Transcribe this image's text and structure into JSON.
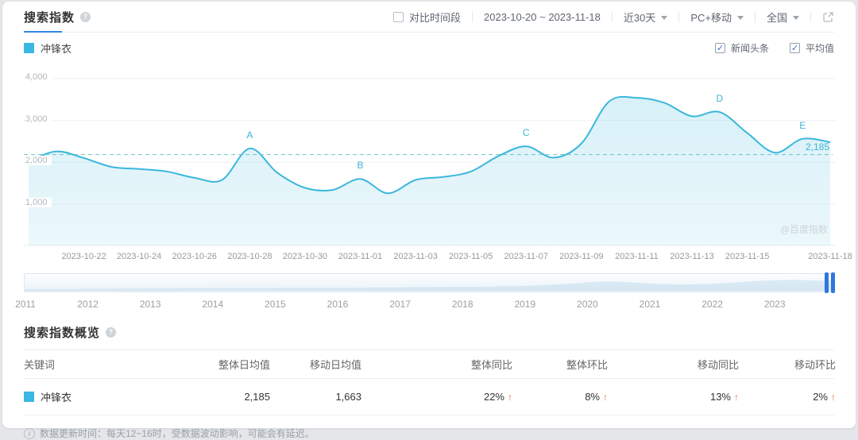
{
  "header": {
    "title": "搜索指数",
    "compare_label": "对比时间段",
    "date_range": "2023-10-20 ~ 2023-11-18",
    "period": "近30天",
    "device": "PC+移动",
    "region": "全国"
  },
  "legend": {
    "keyword": "冲锋衣",
    "news_label": "新闻头条",
    "avg_label": "平均值"
  },
  "chart_data": {
    "type": "area",
    "title": "搜索指数",
    "x": [
      "2023-10-20",
      "2023-10-21",
      "2023-10-22",
      "2023-10-23",
      "2023-10-24",
      "2023-10-25",
      "2023-10-26",
      "2023-10-27",
      "2023-10-28",
      "2023-10-29",
      "2023-10-30",
      "2023-10-31",
      "2023-11-01",
      "2023-11-02",
      "2023-11-03",
      "2023-11-04",
      "2023-11-05",
      "2023-11-06",
      "2023-11-07",
      "2023-11-08",
      "2023-11-09",
      "2023-11-10",
      "2023-11-11",
      "2023-11-12",
      "2023-11-13",
      "2023-11-14",
      "2023-11-15",
      "2023-11-16",
      "2023-11-17",
      "2023-11-18"
    ],
    "series": [
      {
        "name": "冲锋衣",
        "color": "#3ab7dc",
        "values": [
          2020,
          2260,
          2100,
          1890,
          1840,
          1780,
          1630,
          1580,
          2330,
          1750,
          1390,
          1340,
          1600,
          1260,
          1580,
          1650,
          1780,
          2150,
          2380,
          2110,
          2450,
          3450,
          3540,
          3420,
          3100,
          3200,
          2700,
          2230,
          2560,
          2480
        ]
      }
    ],
    "average": 2185,
    "average_label": "2,185",
    "ylim": [
      0,
      4000
    ],
    "grid": true,
    "yticks": [
      {
        "value": 4000,
        "label": "4,000"
      },
      {
        "value": 3000,
        "label": "3,000"
      },
      {
        "value": 2000,
        "label": "2,000"
      },
      {
        "value": 1000,
        "label": "1,000"
      }
    ],
    "xticks": [
      {
        "index": 2,
        "label": "2023-10-22"
      },
      {
        "index": 4,
        "label": "2023-10-24"
      },
      {
        "index": 6,
        "label": "2023-10-26"
      },
      {
        "index": 8,
        "label": "2023-10-28"
      },
      {
        "index": 10,
        "label": "2023-10-30"
      },
      {
        "index": 12,
        "label": "2023-11-01"
      },
      {
        "index": 14,
        "label": "2023-11-03"
      },
      {
        "index": 16,
        "label": "2023-11-05"
      },
      {
        "index": 18,
        "label": "2023-11-07"
      },
      {
        "index": 20,
        "label": "2023-11-09"
      },
      {
        "index": 22,
        "label": "2023-11-11"
      },
      {
        "index": 24,
        "label": "2023-11-13"
      },
      {
        "index": 26,
        "label": "2023-11-15"
      },
      {
        "index": 29,
        "label": "2023-11-18"
      }
    ],
    "annotations": [
      {
        "label": "A",
        "index": 8
      },
      {
        "label": "B",
        "index": 12
      },
      {
        "label": "C",
        "index": 18
      },
      {
        "label": "D",
        "index": 25
      },
      {
        "label": "E",
        "index": 28
      }
    ],
    "watermark": "@百度指数"
  },
  "timeline": {
    "years": [
      "2011",
      "2012",
      "2013",
      "2014",
      "2015",
      "2016",
      "2017",
      "2018",
      "2019",
      "2020",
      "2021",
      "2022",
      "2023"
    ]
  },
  "overview": {
    "title": "搜索指数概览",
    "columns": [
      "关键词",
      "整体日均值",
      "移动日均值",
      "整体同比",
      "整体环比",
      "移动同比",
      "移动环比"
    ],
    "trend_up_icon": "↑",
    "rows": [
      {
        "keyword": "冲锋衣",
        "overall_avg": "2,185",
        "mobile_avg": "1,663",
        "overall_yoy": "22%",
        "overall_mom": "8%",
        "mobile_yoy": "13%",
        "mobile_mom": "2%"
      }
    ]
  },
  "footer": {
    "note": "数据更新时间：每天12~16时，受数据波动影响，可能会有延迟。"
  }
}
